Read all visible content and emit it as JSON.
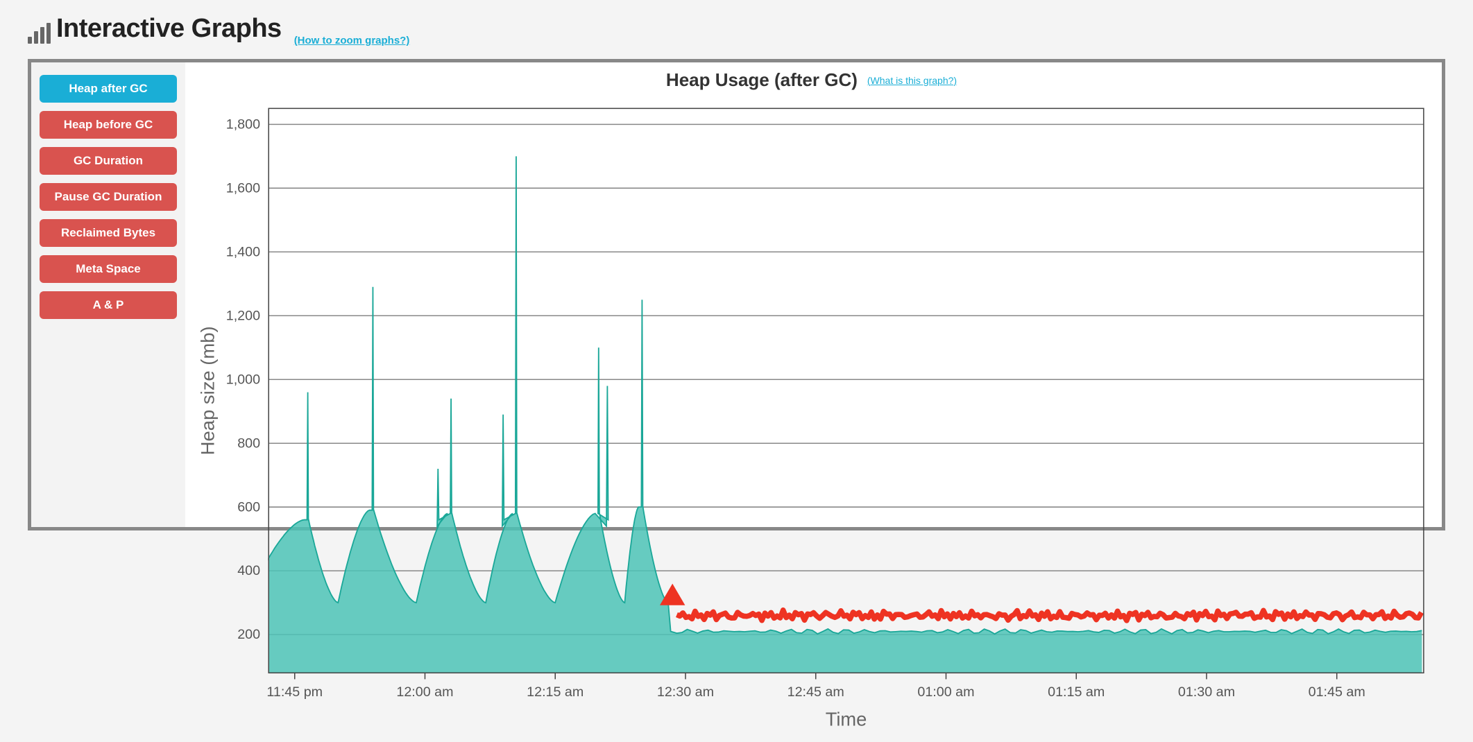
{
  "header": {
    "title": "Interactive Graphs",
    "help_link": "(How to zoom graphs?)"
  },
  "sidebar": {
    "tabs": [
      {
        "label": "Heap after GC",
        "active": true
      },
      {
        "label": "Heap before GC",
        "active": false
      },
      {
        "label": "GC Duration",
        "active": false
      },
      {
        "label": "Pause GC Duration",
        "active": false
      },
      {
        "label": "Reclaimed Bytes",
        "active": false
      },
      {
        "label": "Meta Space",
        "active": false
      },
      {
        "label": "A & P",
        "active": false
      }
    ]
  },
  "chart": {
    "title": "Heap Usage (after GC)",
    "help_link": "(What is this graph?)",
    "type": "area",
    "xlabel": "Time",
    "ylabel": "Heap size (mb)",
    "x_ticks": [
      "11:45 pm",
      "12:00 am",
      "12:15 am",
      "12:30 am",
      "12:45 am",
      "01:00 am",
      "01:15 am",
      "01:30 am",
      "01:45 am"
    ],
    "x_tick_positions": [
      0,
      15,
      30,
      45,
      60,
      75,
      90,
      105,
      120
    ],
    "x_domain": [
      -3,
      130
    ],
    "y_ticks": [
      200,
      400,
      600,
      800,
      1000,
      1200,
      1400,
      1600,
      1800
    ],
    "y_domain": [
      80,
      1850
    ],
    "background_color": "#ffffff",
    "grid_color": "#888888",
    "area_fill_color": "#4cc3b6",
    "area_stroke_color": "#1aa798",
    "red_color": "#ee3322",
    "teal_sawtooth": {
      "comment": "six sawtooth cycles then step down to ~210 flat; each cycle has tall spike + decay curve",
      "cycles": [
        {
          "x_start": -3,
          "x_spike": 1.5,
          "spike": 960,
          "post_spike": 560,
          "x_end": 5,
          "decay_to": 300
        },
        {
          "x_start": 5,
          "x_spike": 9,
          "spike": 1290,
          "post_spike": 590,
          "x_end": 14,
          "decay_to": 300
        },
        {
          "x_start": 14,
          "x_spike": 18,
          "spike": 940,
          "post_spike": 580,
          "x_end": 22,
          "decay_to": 300,
          "secondary_spike": {
            "x": 16.5,
            "value": 720
          }
        },
        {
          "x_start": 22,
          "x_spike": 25.5,
          "spike": 1700,
          "post_spike": 580,
          "x_end": 30,
          "decay_to": 300,
          "secondary_spike": {
            "x": 24,
            "value": 890
          }
        },
        {
          "x_start": 30,
          "x_spike": 35,
          "spike": 1100,
          "post_spike": 580,
          "x_end": 38,
          "decay_to": 300,
          "secondary_spike": {
            "x": 36,
            "value": 980
          }
        },
        {
          "x_start": 38,
          "x_spike": 40,
          "spike": 1250,
          "post_spike": 600,
          "x_end": 43,
          "decay_to": 300
        }
      ],
      "plateau_after": {
        "x_from": 43,
        "x_to": 130,
        "value": 210,
        "jitter": 8
      }
    },
    "red_series": {
      "marker": {
        "x": 43.5,
        "y": 320,
        "shape": "triangle-up",
        "size": 12
      },
      "line": {
        "x_from": 44,
        "x_to": 130,
        "y_base": 260,
        "jitter": 14
      }
    }
  },
  "colors": {
    "accent_blue": "#1aaed6",
    "accent_red_btn": "#d9534f",
    "panel_border": "#888888",
    "text_dark": "#222222"
  }
}
